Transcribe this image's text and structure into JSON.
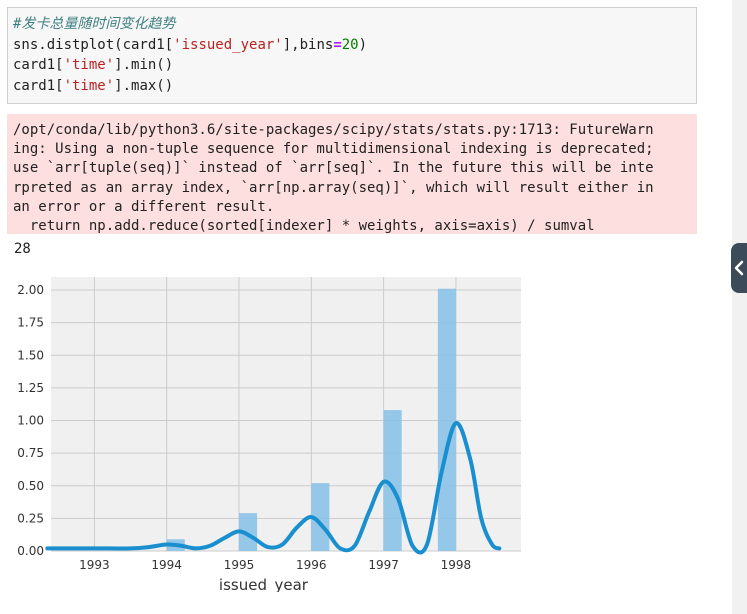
{
  "code_cell": {
    "comment": "#发卡总量随时间变化趋势",
    "line2_a": "sns.distplot(card1[",
    "line2_str": "'issued_year'",
    "line2_b": "],bins",
    "line2_eq": "=",
    "line2_num": "20",
    "line2_c": ")",
    "line3_a": "card1[",
    "line3_str": "'time'",
    "line3_b": "].min()",
    "line4_a": "card1[",
    "line4_str": "'time'",
    "line4_b": "].max()"
  },
  "warning": {
    "lines": [
      "/opt/conda/lib/python3.6/site-packages/scipy/stats/stats.py:1713: FutureWarn",
      "ing: Using a non-tuple sequence for multidimensional indexing is deprecated;",
      "use `arr[tuple(seq)]` instead of `arr[seq]`. In the future this will be inte",
      "rpreted as an array index, `arr[np.array(seq)]`, which will result either in",
      "an error or a different result.",
      "  return np.add.reduce(sorted[indexer] * weights, axis=axis) / sumval"
    ]
  },
  "output_value": "28",
  "chart_data": {
    "type": "bar",
    "xlabel": "issued_year",
    "ylabel": "",
    "xticks": [
      "1993",
      "1994",
      "1995",
      "1996",
      "1997",
      "1998"
    ],
    "yticks": [
      "0.00",
      "0.25",
      "0.50",
      "0.75",
      "1.00",
      "1.25",
      "1.50",
      "1.75",
      "2.00"
    ],
    "xlim": [
      1992.4,
      1998.9
    ],
    "ylim": [
      0,
      2.1
    ],
    "grid": true,
    "colors": {
      "bar": "#89c2e7",
      "kde": "#1a8fd0",
      "background": "#f0f0f0",
      "grid": "#cbcbcb"
    },
    "histogram": [
      {
        "x_start": 1994.0,
        "x_end": 1994.25,
        "value": 0.09
      },
      {
        "x_start": 1995.0,
        "x_end": 1995.25,
        "value": 0.29
      },
      {
        "x_start": 1996.0,
        "x_end": 1996.25,
        "value": 0.52
      },
      {
        "x_start": 1997.0,
        "x_end": 1997.25,
        "value": 1.08
      },
      {
        "x_start": 1997.75,
        "x_end": 1998.0,
        "value": 2.01
      }
    ],
    "kde": {
      "x": [
        1992.35,
        1992.8,
        1993.2,
        1993.5,
        1993.75,
        1994.0,
        1994.2,
        1994.4,
        1994.6,
        1994.8,
        1995.0,
        1995.2,
        1995.4,
        1995.6,
        1995.8,
        1996.0,
        1996.2,
        1996.4,
        1996.6,
        1996.8,
        1997.0,
        1997.2,
        1997.4,
        1997.6,
        1997.8,
        1998.0,
        1998.2,
        1998.35,
        1998.5,
        1998.6
      ],
      "y": [
        0.02,
        0.02,
        0.02,
        0.02,
        0.03,
        0.05,
        0.04,
        0.02,
        0.04,
        0.1,
        0.15,
        0.1,
        0.03,
        0.05,
        0.18,
        0.26,
        0.16,
        0.02,
        0.04,
        0.3,
        0.53,
        0.4,
        0.04,
        0.05,
        0.6,
        0.98,
        0.7,
        0.25,
        0.05,
        0.02
      ]
    }
  }
}
